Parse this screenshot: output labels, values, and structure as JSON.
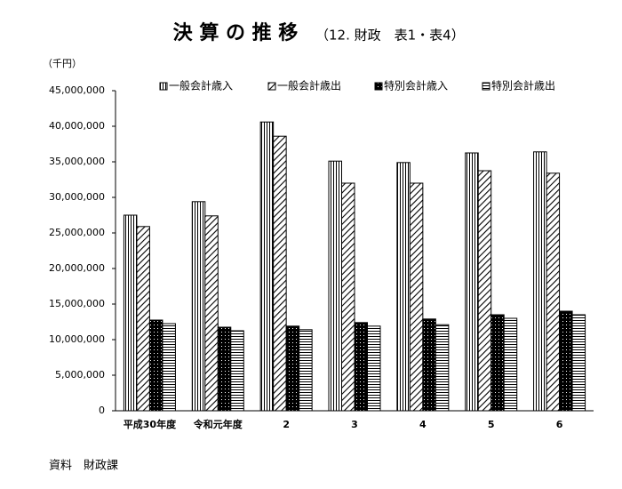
{
  "chart_data": {
    "type": "bar",
    "title": "決 算 の 推 移",
    "subtitle": "（12. 財政　表1・表4）",
    "y_label": "（千円）",
    "source": "資料　財政課",
    "categories": [
      "平成30年度",
      "令和元年度",
      "2",
      "3",
      "4",
      "5",
      "6"
    ],
    "series": [
      {
        "name": "一般会計歳入",
        "color": "#000000",
        "pattern": "vertical",
        "values": [
          27500000,
          29400000,
          40600000,
          35100000,
          34900000,
          36250000,
          36400000
        ]
      },
      {
        "name": "一般会計歳出",
        "color": "#000000",
        "pattern": "diagonal",
        "values": [
          25900000,
          27400000,
          38600000,
          32000000,
          32000000,
          33750000,
          33400000
        ]
      },
      {
        "name": "特別会計歳入",
        "color": "#000000",
        "pattern": "dots",
        "values": [
          12750000,
          11750000,
          11900000,
          12400000,
          12900000,
          13500000,
          14000000
        ]
      },
      {
        "name": "特別会計歳出",
        "color": "#000000",
        "pattern": "horizontal",
        "values": [
          12250000,
          11250000,
          11400000,
          11900000,
          12100000,
          13000000,
          13500000
        ]
      }
    ],
    "ylim": [
      0,
      45000000
    ],
    "yticks": [
      0,
      {
        "value": 5000000,
        "label": "5,000,000"
      },
      {
        "value": 10000000,
        "label": "10,000,000"
      },
      {
        "value": 15000000,
        "label": "15,000,000"
      },
      {
        "value": 20000000,
        "label": "20,000,000"
      },
      {
        "value": 25000000,
        "label": "25,000,000"
      },
      {
        "value": 30000000,
        "label": "30,000,000"
      },
      {
        "value": 35000000,
        "label": "35,000,000"
      },
      {
        "value": 40000000,
        "label": "40,000,000"
      },
      {
        "value": 45000000,
        "label": "45,000,000"
      }
    ],
    "grid": false,
    "legend": "top"
  }
}
